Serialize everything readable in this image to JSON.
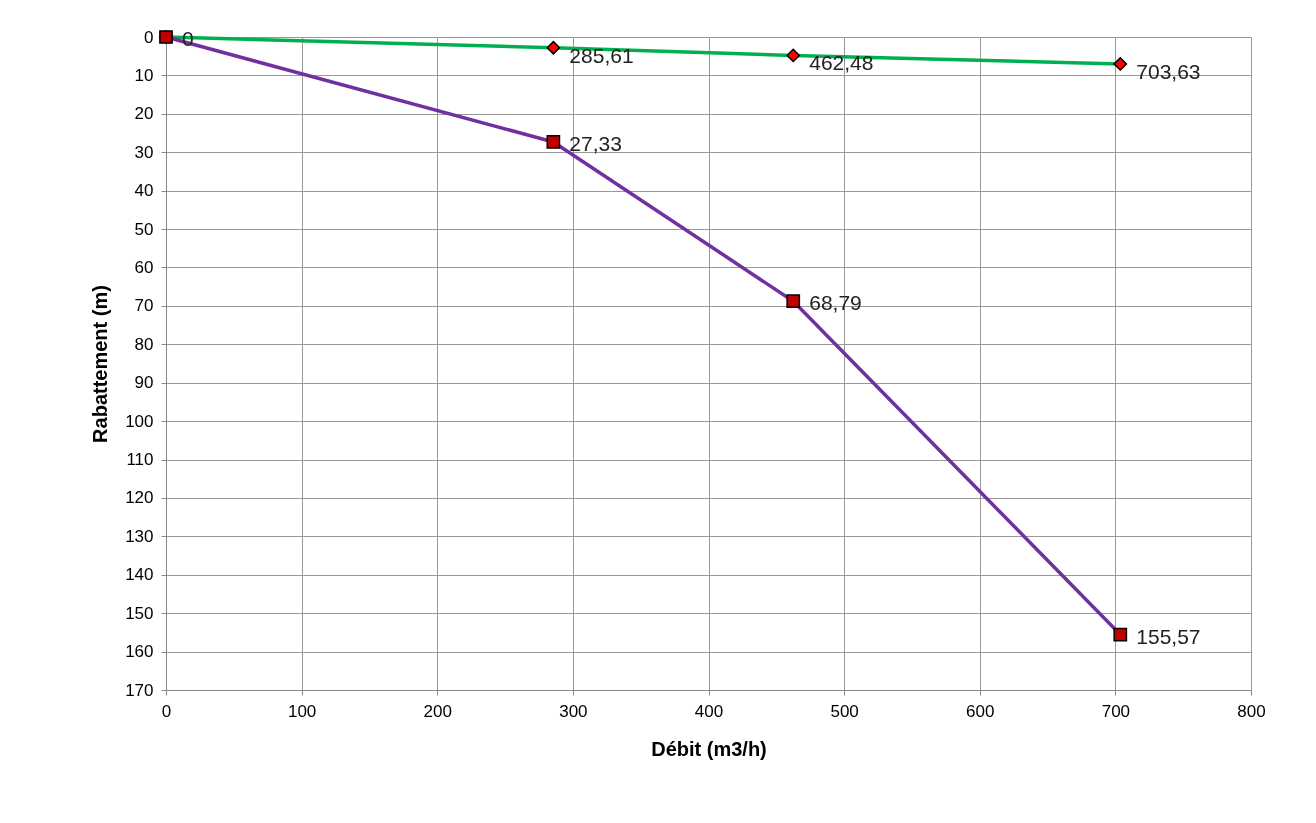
{
  "chart_data": {
    "type": "line",
    "xlabel": "Débit (m3/h)",
    "ylabel": "Rabattement (m)",
    "xlim": [
      0,
      800
    ],
    "xticks": [
      0,
      100,
      200,
      300,
      400,
      500,
      600,
      700,
      800
    ],
    "ylim": [
      170,
      0
    ],
    "yticks": [
      0,
      10,
      20,
      30,
      40,
      50,
      60,
      70,
      80,
      90,
      100,
      110,
      120,
      130,
      140,
      150,
      160,
      170
    ],
    "grid": true,
    "annotations": [
      {
        "text": "285,61",
        "x": 285.61,
        "y": 2.8
      },
      {
        "text": "462,48",
        "x": 462.48,
        "y": 4.8
      },
      {
        "text": "703,63",
        "x": 703.63,
        "y": 7.0
      }
    ],
    "series": [
      {
        "color": "#00b050",
        "marker": "diamond",
        "colors": [
          "#ff0000",
          "#ff0000",
          "#ff0000",
          "#ff0000"
        ],
        "x": [
          0,
          285.61,
          462.48,
          703.63
        ],
        "values": [
          0,
          2.8,
          4.8,
          7.0
        ]
      },
      {
        "color": "#7030a0",
        "marker": "square",
        "colors": [
          "#c00000",
          "#c00000",
          "#c00000",
          "#c00000"
        ],
        "x": [
          0,
          285.61,
          462.48,
          703.63
        ],
        "values": [
          0,
          27.33,
          68.79,
          155.57
        ],
        "value_labels": [
          "0",
          "27,33",
          "68,79",
          "155,57"
        ]
      }
    ]
  }
}
